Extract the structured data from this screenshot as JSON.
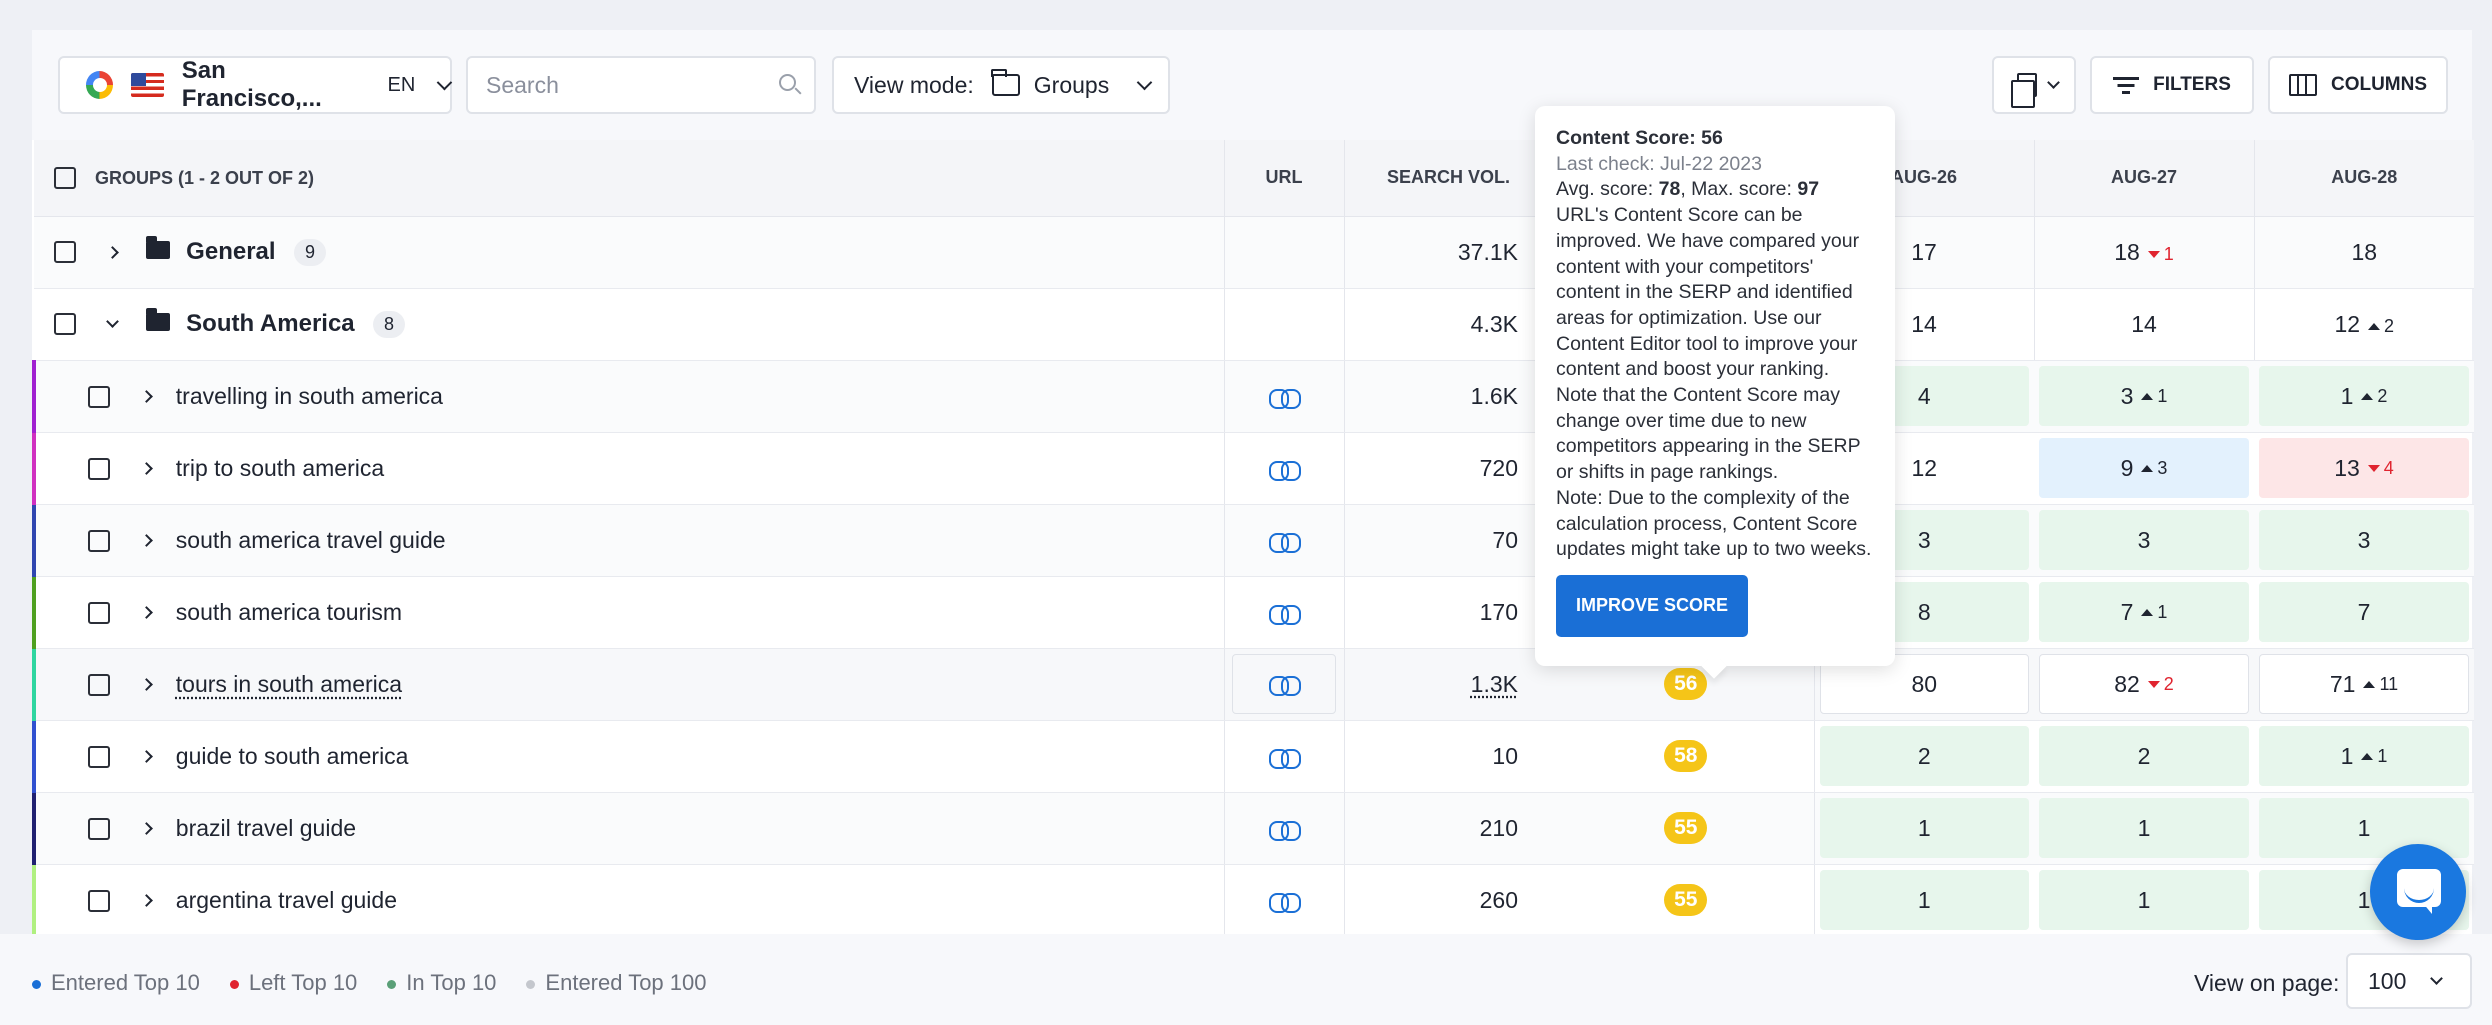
{
  "toolbar": {
    "location": "San Francisco,...",
    "language": "EN",
    "search_placeholder": "Search",
    "view_mode_label": "View mode:",
    "view_mode_value": "Groups",
    "filters_label": "FILTERS",
    "columns_label": "COLUMNS"
  },
  "table": {
    "headers": {
      "groups": "GROUPS (1 - 2 OUT OF 2)",
      "url": "URL",
      "search_volume": "SEARCH VOL.",
      "d1": "AUG-26",
      "d2": "AUG-27",
      "d3": "AUG-28"
    },
    "groups": [
      {
        "name": "General",
        "count": "9",
        "volume": "37.1K",
        "d1": "17",
        "d2": "18",
        "d2_delta": "1",
        "d3": "18"
      },
      {
        "name": "South America",
        "count": "8",
        "volume": "4.3K",
        "d1": "14",
        "d2": "14",
        "d3": "12",
        "d3_delta": "2"
      }
    ],
    "keywords": [
      {
        "keyword": "travelling in south america",
        "volume": "1.6K",
        "d1": "4",
        "d2": "3",
        "d2_delta": "1",
        "d3": "1",
        "d3_delta": "2"
      },
      {
        "keyword": "trip to south america",
        "volume": "720",
        "d1": "12",
        "d2": "9",
        "d2_delta": "3",
        "d3": "13",
        "d3_delta": "4"
      },
      {
        "keyword": "south america travel guide",
        "volume": "70",
        "d1": "3",
        "d2": "3",
        "d3": "3"
      },
      {
        "keyword": "south america tourism",
        "volume": "170",
        "d1": "8",
        "d2": "7",
        "d2_delta": "1",
        "d3": "7"
      },
      {
        "keyword": "tours in south america",
        "volume": "1.3K",
        "score": "56",
        "d1": "80",
        "d2": "82",
        "d2_delta": "2",
        "d3": "71",
        "d3_delta": "11"
      },
      {
        "keyword": "guide to south america",
        "volume": "10",
        "score": "58",
        "d1": "2",
        "d2": "2",
        "d3": "1",
        "d3_delta": "1"
      },
      {
        "keyword": "brazil travel guide",
        "volume": "210",
        "score": "55",
        "d1": "1",
        "d2": "1",
        "d3": "1"
      },
      {
        "keyword": "argentina travel guide",
        "volume": "260",
        "score": "55",
        "d1": "1",
        "d2": "1",
        "d3": "1"
      }
    ]
  },
  "tooltip": {
    "title": "Content Score: 56",
    "last_check": "Last check: Jul-22 2023",
    "avg_label": "Avg. score: ",
    "avg_value": "78",
    "max_label": ", Max. score: ",
    "max_value": "97",
    "body": "URL's Content Score can be improved. We have compared your content with your competitors' content in the SERP and identified areas for optimization. Use our Content Editor tool to improve your content and boost your ranking. Note that the Content Score may change over time due to new competitors appearing in the SERP or shifts in page rankings.",
    "note": "Note: Due to the complexity of the calculation process, Content Score updates might take up to two weeks.",
    "button": "IMPROVE SCORE"
  },
  "legend": [
    {
      "label": "Entered Top 10",
      "color": "#1a6fd6"
    },
    {
      "label": "Left Top 10",
      "color": "#e0242f"
    },
    {
      "label": "In Top 10",
      "color": "#5a9f77"
    },
    {
      "label": "Entered Top 100",
      "color": "#c4c7cd"
    }
  ],
  "footer": {
    "view_on_page_label": "View on page:",
    "per_page": "100"
  },
  "colors": {
    "accent": "#1a6fd6",
    "score_badge": "#f5c518",
    "in_top10_bg": "#e7f6ec",
    "entered_top10_bg": "#e3f1fd",
    "left_top10_bg": "#fde6e7",
    "row_markers": [
      "#a020d0",
      "#d030c0",
      "#2f46b0",
      "#4fa020",
      "#2fd6a0",
      "#3050d0",
      "#202070",
      "#b0f080"
    ]
  }
}
